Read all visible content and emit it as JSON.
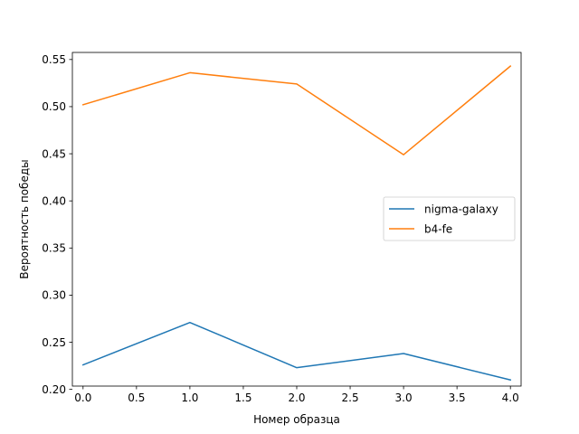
{
  "chart_data": {
    "type": "line",
    "title": "",
    "xlabel": "Номер образца",
    "ylabel": "Вероятность победы",
    "x": [
      0,
      1,
      2,
      3,
      4
    ],
    "xlim": [
      -0.1,
      4.1
    ],
    "ylim": [
      0.2035,
      0.5575
    ],
    "xticks": [
      0.0,
      0.5,
      1.0,
      1.5,
      2.0,
      2.5,
      3.0,
      3.5,
      4.0
    ],
    "xtick_labels": [
      "0.0",
      "0.5",
      "1.0",
      "1.5",
      "2.0",
      "2.5",
      "3.0",
      "3.5",
      "4.0"
    ],
    "yticks": [
      0.2,
      0.25,
      0.3,
      0.35,
      0.4,
      0.45,
      0.5,
      0.55
    ],
    "ytick_labels": [
      "0.20",
      "0.25",
      "0.30",
      "0.35",
      "0.40",
      "0.45",
      "0.50",
      "0.55"
    ],
    "grid": false,
    "legend_position": "center-right",
    "series": [
      {
        "name": "nigma-galaxy",
        "color": "#1f77b4",
        "values": [
          0.226,
          0.271,
          0.223,
          0.238,
          0.21
        ]
      },
      {
        "name": "b4-fe",
        "color": "#ff7f0e",
        "values": [
          0.502,
          0.536,
          0.524,
          0.449,
          0.543
        ]
      }
    ]
  }
}
